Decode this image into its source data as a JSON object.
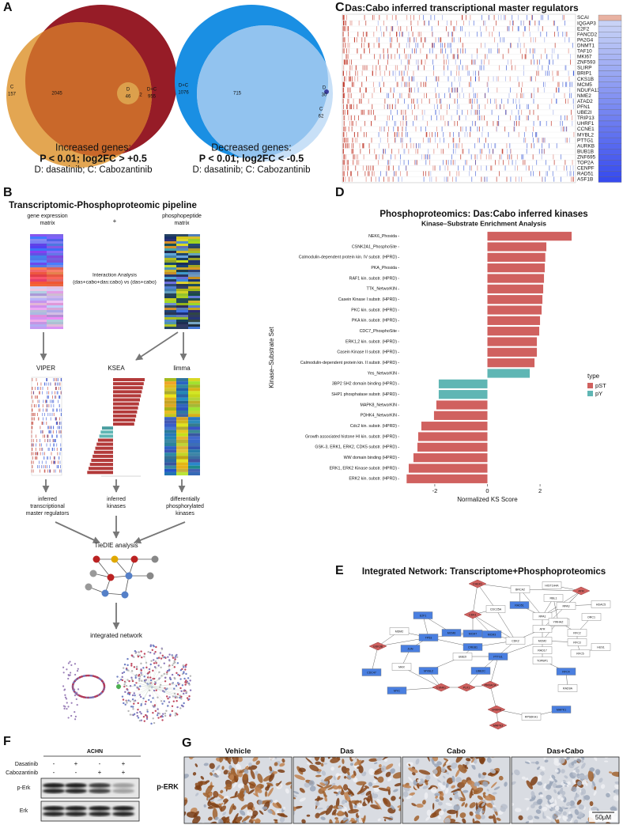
{
  "panel_a": {
    "letter": "A",
    "venns": [
      {
        "regions": [
          {
            "name": "C",
            "count": 157
          },
          {
            "count": 2045
          },
          {
            "name": "D",
            "count": 46
          },
          {
            "count": 2
          },
          {
            "name": "D+C",
            "count": 955
          }
        ],
        "caption": [
          "Increased genes:",
          "P < 0.01; log2FC > +0.5",
          "D: dasatinib; C: Cabozantinib"
        ]
      },
      {
        "regions": [
          {
            "name": "D+C",
            "count": 1076
          },
          {
            "count": 715
          },
          {
            "name": "D",
            "count": 30
          },
          {
            "name": "C",
            "count": 62
          }
        ],
        "caption": [
          "Decreased genes:",
          "P < 0.01; log2FC < -0.5",
          "D: dasatinib; C: Cabozantinib"
        ]
      }
    ]
  },
  "panel_b": {
    "letter": "B",
    "title": "Transcriptomic-Phosphoproteomic pipeline",
    "inputs": [
      [
        "gene expression",
        "matrix"
      ],
      [
        "phosphopeptide",
        "matrix"
      ]
    ],
    "plus": "+",
    "interaction": [
      "Interaction Analysis",
      "(das+cabo+das:cabo) vs (das+cabo)"
    ],
    "methods": [
      "VIPER",
      "KSEA",
      "limma"
    ],
    "outputs": [
      [
        "inferred",
        "transcriptional",
        "master regulators"
      ],
      [
        "inferred",
        "kinases"
      ],
      [
        "differentially",
        "phosphorylated",
        "kinases"
      ]
    ],
    "integration": "TieDIE analysis",
    "result": "integrated network"
  },
  "panel_c": {
    "letter": "C",
    "title": "Das:Cabo inferred transcriptional master regulators",
    "genes": [
      "SCAI",
      "IQGAP3",
      "E2F2",
      "FANCD2",
      "PA2G4",
      "DNMT1",
      "TAF10",
      "MKI67",
      "ZNF593",
      "SLIRP",
      "BRIP1",
      "CKS1B",
      "MCM5",
      "NDUFA13",
      "NME2",
      "ATAD2",
      "PFN1",
      "UBE2I",
      "TRIP13",
      "UHRF1",
      "CCNE1",
      "MYBL2",
      "PTTG1",
      "AURKB",
      "BUB1B",
      "ZNF695",
      "TOP2A",
      "CENPF",
      "RAD51",
      "ASF1B"
    ]
  },
  "chart_data": {
    "type": "bar",
    "orientation": "horizontal",
    "letter": "D",
    "title": "Phosphoproteomics: Das:Cabo inferred kinases",
    "subtitle": "Kinase–Substrate Enrichment Analysis",
    "y_label": "Kinase–Substrate Set",
    "x_label": "Normalized KS Score",
    "legend_title": "type",
    "categories": [
      "NEK6_Phosida",
      "CSNK2A1_PhosphoSite",
      "Calmodulin-dependent protein kin. IV substr. (HPRD)",
      "PKA_Phosida",
      "RAF1 kin. substr. (HPRD)",
      "TTK_NetworKIN",
      "Casein Kinase I substr. (HPRD)",
      "PKC kin. substr. (HPRD)",
      "PKA kin. substr. (HPRD)",
      "CDC7_PhosphoSite",
      "ERK1,2 kin. substr. (HPRD)",
      "Casein Kinase II substr. (HPRD)",
      "Calmodulin-dependent protein kin. II substr. (HPRD)",
      "Yes_NetworKIN",
      "3BP2 SH2 domain binding (HPRD)",
      "SHP1 phosphatase substr. (HPRD)",
      "MAPK8_NetworKIN",
      "PDHK4_NetworKIN",
      "Cdc2 kin. substr. (HPRD)",
      "Growth associated histone HI kin. substr. (HPRD)",
      "GSK-3, ERK1, ERK2, CDK5 substr. (HPRD)",
      "WW domain binding (HPRD)",
      "ERK1, ERK2 Kinase substr. (HPRD)",
      "ERK2 kin. substr. (HPRD)"
    ],
    "series": [
      {
        "name": "pST",
        "color": "#d0615f",
        "values": [
          3.2,
          2.24,
          2.2,
          2.18,
          2.15,
          2.12,
          2.09,
          2.06,
          2.0,
          1.97,
          1.88,
          1.88,
          1.79,
          null,
          null,
          null,
          -1.94,
          -2.03,
          -2.51,
          -2.63,
          -2.66,
          -2.81,
          -2.99,
          -3.07
        ]
      },
      {
        "name": "pY",
        "color": "#5fb6b4",
        "values": [
          null,
          null,
          null,
          null,
          null,
          null,
          null,
          null,
          null,
          null,
          null,
          null,
          null,
          1.61,
          -1.85,
          -1.85,
          null,
          null,
          null,
          null,
          null,
          null,
          null,
          null
        ]
      }
    ],
    "xlim": [
      -3.35,
      3.35
    ],
    "xticks": [
      -2,
      0,
      2
    ],
    "grid": false,
    "legend": "right"
  },
  "panel_e": {
    "letter": "E",
    "title": "Integrated Network: Transcriptome+Phosphoproteomics",
    "nodes": [
      {
        "label": "CHEK1",
        "kind": "kinase"
      },
      {
        "label": "BRCA2",
        "kind": "other"
      },
      {
        "label": "HIST1H4A",
        "kind": "other"
      },
      {
        "label": "ATM",
        "kind": "kinase"
      },
      {
        "label": "CDC25A",
        "kind": "other"
      },
      {
        "label": "RAD51",
        "kind": "regulator"
      },
      {
        "label": "RPA3",
        "kind": "other"
      },
      {
        "label": "HDAC5",
        "kind": "other"
      },
      {
        "label": "CDK1",
        "kind": "kinase"
      },
      {
        "label": "RPA1",
        "kind": "other"
      },
      {
        "label": "ORC1",
        "kind": "other"
      },
      {
        "label": "MCM6",
        "kind": "regulator"
      },
      {
        "label": "MCM7",
        "kind": "regulator"
      },
      {
        "label": "MCM3",
        "kind": "regulator"
      },
      {
        "label": "CDK2",
        "kind": "other"
      },
      {
        "label": "ATR",
        "kind": "other"
      },
      {
        "label": "RPA2",
        "kind": "other"
      },
      {
        "label": "RFC2",
        "kind": "other"
      },
      {
        "label": "E2F1",
        "kind": "regulator"
      },
      {
        "label": "MDM2",
        "kind": "other"
      },
      {
        "label": "TP53",
        "kind": "regulator"
      },
      {
        "label": "CREB1",
        "kind": "regulator"
      },
      {
        "label": "MCM2",
        "kind": "other"
      },
      {
        "label": "RFC3",
        "kind": "other"
      },
      {
        "label": "GSK3B",
        "kind": "kinase"
      },
      {
        "label": "JUN",
        "kind": "regulator"
      },
      {
        "label": "UBE2I",
        "kind": "other"
      },
      {
        "label": "PTTG1",
        "kind": "regulator"
      },
      {
        "label": "RAD17",
        "kind": "other"
      },
      {
        "label": "RFC5",
        "kind": "other"
      },
      {
        "label": "HUS1",
        "kind": "other"
      },
      {
        "label": "MAX",
        "kind": "other"
      },
      {
        "label": "CDC47",
        "kind": "regulator"
      },
      {
        "label": "MYBL2",
        "kind": "regulator"
      },
      {
        "label": "UBE2C",
        "kind": "regulator"
      },
      {
        "label": "CSNK1",
        "kind": "kinase"
      },
      {
        "label": "PLK1",
        "kind": "kinase"
      },
      {
        "label": "PRKACA",
        "kind": "kinase"
      },
      {
        "label": "TOPBP1",
        "kind": "other"
      },
      {
        "label": "RFC4",
        "kind": "regulator"
      },
      {
        "label": "RAD9A",
        "kind": "other"
      },
      {
        "label": "MYC",
        "kind": "regulator"
      },
      {
        "label": "CRKRS",
        "kind": "kinase"
      },
      {
        "label": "RPS6KA1",
        "kind": "other"
      },
      {
        "label": "MAPK1",
        "kind": "regulator"
      },
      {
        "label": "MAPK3",
        "kind": "kinase"
      },
      {
        "label": "YWHAZ",
        "kind": "other"
      },
      {
        "label": "RBL1",
        "kind": "other"
      }
    ]
  },
  "panel_f": {
    "letter": "F",
    "cell_line": "ACHN",
    "treatments": [
      {
        "name": "Dasatinib",
        "signs": [
          "-",
          "+",
          "-",
          "+"
        ]
      },
      {
        "name": "Cabozantinib",
        "signs": [
          "-",
          "-",
          "+",
          "+"
        ]
      }
    ],
    "blots": [
      "p-Erk",
      "Erk"
    ]
  },
  "panel_g": {
    "letter": "G",
    "conditions": [
      "Vehicle",
      "Das",
      "Cabo",
      "Das+Cabo"
    ],
    "stain": "p-ERK",
    "scale_bar": "50μM"
  }
}
